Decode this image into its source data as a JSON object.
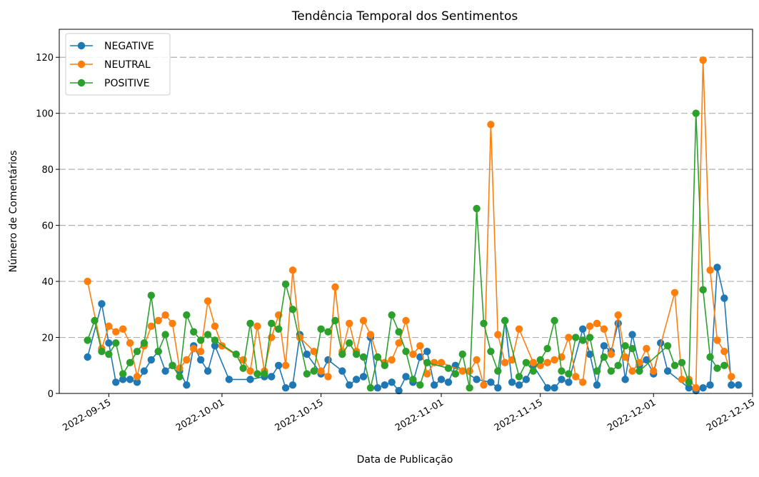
{
  "chart_data": {
    "type": "line",
    "title": "Tendência Temporal dos Sentimentos",
    "xlabel": "Data de Publicação",
    "ylabel": "Número de Comentários",
    "ylim": [
      0,
      130
    ],
    "yticks": [
      0,
      20,
      40,
      60,
      80,
      100,
      120
    ],
    "xlim": [
      "2022-09-08",
      "2022-12-15"
    ],
    "xticks": [
      "2022-09-15",
      "2022-10-01",
      "2022-10-15",
      "2022-11-01",
      "2022-11-15",
      "2022-12-01",
      "2022-12-15"
    ],
    "grid": "horizontal dashed",
    "legend": "top-left",
    "series": [
      {
        "name": "NEGATIVE",
        "color": "#1f77b4",
        "points": [
          [
            "2022-09-12",
            13
          ],
          [
            "2022-09-14",
            32
          ],
          [
            "2022-09-15",
            18
          ],
          [
            "2022-09-16",
            4
          ],
          [
            "2022-09-17",
            5
          ],
          [
            "2022-09-18",
            5
          ],
          [
            "2022-09-19",
            4
          ],
          [
            "2022-09-20",
            8
          ],
          [
            "2022-09-21",
            12
          ],
          [
            "2022-09-22",
            15
          ],
          [
            "2022-09-23",
            8
          ],
          [
            "2022-09-24",
            10
          ],
          [
            "2022-09-25",
            8
          ],
          [
            "2022-09-26",
            3
          ],
          [
            "2022-09-27",
            17
          ],
          [
            "2022-09-28",
            12
          ],
          [
            "2022-09-29",
            8
          ],
          [
            "2022-09-30",
            17
          ],
          [
            "2022-10-02",
            5
          ],
          [
            "2022-10-05",
            5
          ],
          [
            "2022-10-07",
            6
          ],
          [
            "2022-10-08",
            6
          ],
          [
            "2022-10-09",
            10
          ],
          [
            "2022-10-10",
            2
          ],
          [
            "2022-10-11",
            3
          ],
          [
            "2022-10-12",
            21
          ],
          [
            "2022-10-13",
            14
          ],
          [
            "2022-10-15",
            7
          ],
          [
            "2022-10-16",
            12
          ],
          [
            "2022-10-18",
            8
          ],
          [
            "2022-10-19",
            3
          ],
          [
            "2022-10-20",
            5
          ],
          [
            "2022-10-21",
            6
          ],
          [
            "2022-10-22",
            20
          ],
          [
            "2022-10-23",
            2
          ],
          [
            "2022-10-24",
            3
          ],
          [
            "2022-10-25",
            4
          ],
          [
            "2022-10-26",
            1
          ],
          [
            "2022-10-27",
            6
          ],
          [
            "2022-10-28",
            4
          ],
          [
            "2022-10-29",
            13
          ],
          [
            "2022-10-30",
            15
          ],
          [
            "2022-10-31",
            3
          ],
          [
            "2022-11-01",
            5
          ],
          [
            "2022-11-02",
            4
          ],
          [
            "2022-11-03",
            10
          ],
          [
            "2022-11-06",
            5
          ],
          [
            "2022-11-08",
            4
          ],
          [
            "2022-11-09",
            2
          ],
          [
            "2022-11-10",
            26
          ],
          [
            "2022-11-11",
            4
          ],
          [
            "2022-11-12",
            3
          ],
          [
            "2022-11-13",
            5
          ],
          [
            "2022-11-14",
            10
          ],
          [
            "2022-11-16",
            2
          ],
          [
            "2022-11-17",
            2
          ],
          [
            "2022-11-18",
            5
          ],
          [
            "2022-11-19",
            4
          ],
          [
            "2022-11-21",
            23
          ],
          [
            "2022-11-22",
            14
          ],
          [
            "2022-11-23",
            3
          ],
          [
            "2022-11-24",
            17
          ],
          [
            "2022-11-25",
            15
          ],
          [
            "2022-11-26",
            25
          ],
          [
            "2022-11-27",
            5
          ],
          [
            "2022-11-28",
            21
          ],
          [
            "2022-11-29",
            10
          ],
          [
            "2022-11-30",
            12
          ],
          [
            "2022-12-01",
            7
          ],
          [
            "2022-12-02",
            18
          ],
          [
            "2022-12-03",
            8
          ],
          [
            "2022-12-06",
            2
          ],
          [
            "2022-12-07",
            1
          ],
          [
            "2022-12-08",
            2
          ],
          [
            "2022-12-09",
            3
          ],
          [
            "2022-12-10",
            45
          ],
          [
            "2022-12-11",
            34
          ],
          [
            "2022-12-12",
            3
          ],
          [
            "2022-12-13",
            3
          ]
        ]
      },
      {
        "name": "NEUTRAL",
        "color": "#ff7f0e",
        "points": [
          [
            "2022-09-12",
            40
          ],
          [
            "2022-09-14",
            16
          ],
          [
            "2022-09-15",
            24
          ],
          [
            "2022-09-16",
            22
          ],
          [
            "2022-09-17",
            23
          ],
          [
            "2022-09-18",
            18
          ],
          [
            "2022-09-19",
            6
          ],
          [
            "2022-09-20",
            17
          ],
          [
            "2022-09-21",
            24
          ],
          [
            "2022-09-22",
            26
          ],
          [
            "2022-09-23",
            28
          ],
          [
            "2022-09-24",
            25
          ],
          [
            "2022-09-25",
            9
          ],
          [
            "2022-09-26",
            12
          ],
          [
            "2022-09-27",
            16
          ],
          [
            "2022-09-28",
            15
          ],
          [
            "2022-09-29",
            33
          ],
          [
            "2022-09-30",
            24
          ],
          [
            "2022-10-01",
            17
          ],
          [
            "2022-10-04",
            12
          ],
          [
            "2022-10-05",
            8
          ],
          [
            "2022-10-06",
            24
          ],
          [
            "2022-10-07",
            8
          ],
          [
            "2022-10-08",
            20
          ],
          [
            "2022-10-09",
            28
          ],
          [
            "2022-10-10",
            10
          ],
          [
            "2022-10-11",
            44
          ],
          [
            "2022-10-12",
            20
          ],
          [
            "2022-10-14",
            15
          ],
          [
            "2022-10-15",
            8
          ],
          [
            "2022-10-16",
            6
          ],
          [
            "2022-10-17",
            38
          ],
          [
            "2022-10-18",
            15
          ],
          [
            "2022-10-19",
            25
          ],
          [
            "2022-10-20",
            15
          ],
          [
            "2022-10-21",
            26
          ],
          [
            "2022-10-22",
            21
          ],
          [
            "2022-10-23",
            13
          ],
          [
            "2022-10-24",
            11
          ],
          [
            "2022-10-25",
            12
          ],
          [
            "2022-10-26",
            18
          ],
          [
            "2022-10-27",
            26
          ],
          [
            "2022-10-28",
            14
          ],
          [
            "2022-10-29",
            17
          ],
          [
            "2022-10-30",
            7
          ],
          [
            "2022-10-31",
            11
          ],
          [
            "2022-11-01",
            11
          ],
          [
            "2022-11-04",
            8
          ],
          [
            "2022-11-05",
            8
          ],
          [
            "2022-11-06",
            12
          ],
          [
            "2022-11-07",
            3
          ],
          [
            "2022-11-08",
            96
          ],
          [
            "2022-11-09",
            21
          ],
          [
            "2022-11-10",
            11
          ],
          [
            "2022-11-11",
            12
          ],
          [
            "2022-11-12",
            23
          ],
          [
            "2022-11-14",
            11
          ],
          [
            "2022-11-15",
            10
          ],
          [
            "2022-11-16",
            11
          ],
          [
            "2022-11-17",
            12
          ],
          [
            "2022-11-18",
            13
          ],
          [
            "2022-11-19",
            20
          ],
          [
            "2022-11-20",
            6
          ],
          [
            "2022-11-21",
            4
          ],
          [
            "2022-11-22",
            24
          ],
          [
            "2022-11-23",
            25
          ],
          [
            "2022-11-24",
            23
          ],
          [
            "2022-11-25",
            14
          ],
          [
            "2022-11-26",
            28
          ],
          [
            "2022-11-27",
            13
          ],
          [
            "2022-11-28",
            8
          ],
          [
            "2022-11-29",
            11
          ],
          [
            "2022-11-30",
            16
          ],
          [
            "2022-12-01",
            8
          ],
          [
            "2022-12-04",
            36
          ],
          [
            "2022-12-05",
            5
          ],
          [
            "2022-12-06",
            5
          ],
          [
            "2022-12-07",
            2
          ],
          [
            "2022-12-08",
            119
          ],
          [
            "2022-12-09",
            44
          ],
          [
            "2022-12-10",
            19
          ],
          [
            "2022-12-11",
            15
          ],
          [
            "2022-12-12",
            6
          ]
        ]
      },
      {
        "name": "POSITIVE",
        "color": "#2ca02c",
        "points": [
          [
            "2022-09-12",
            19
          ],
          [
            "2022-09-13",
            26
          ],
          [
            "2022-09-14",
            15
          ],
          [
            "2022-09-15",
            14
          ],
          [
            "2022-09-16",
            18
          ],
          [
            "2022-09-17",
            7
          ],
          [
            "2022-09-18",
            11
          ],
          [
            "2022-09-19",
            15
          ],
          [
            "2022-09-20",
            18
          ],
          [
            "2022-09-21",
            35
          ],
          [
            "2022-09-22",
            15
          ],
          [
            "2022-09-23",
            21
          ],
          [
            "2022-09-24",
            10
          ],
          [
            "2022-09-25",
            6
          ],
          [
            "2022-09-26",
            28
          ],
          [
            "2022-09-27",
            22
          ],
          [
            "2022-09-28",
            19
          ],
          [
            "2022-09-29",
            21
          ],
          [
            "2022-09-30",
            19
          ],
          [
            "2022-10-03",
            14
          ],
          [
            "2022-10-04",
            9
          ],
          [
            "2022-10-05",
            25
          ],
          [
            "2022-10-06",
            7
          ],
          [
            "2022-10-07",
            7
          ],
          [
            "2022-10-08",
            25
          ],
          [
            "2022-10-09",
            23
          ],
          [
            "2022-10-10",
            39
          ],
          [
            "2022-10-11",
            30
          ],
          [
            "2022-10-13",
            7
          ],
          [
            "2022-10-14",
            8
          ],
          [
            "2022-10-15",
            23
          ],
          [
            "2022-10-16",
            22
          ],
          [
            "2022-10-17",
            26
          ],
          [
            "2022-10-18",
            14
          ],
          [
            "2022-10-19",
            18
          ],
          [
            "2022-10-20",
            14
          ],
          [
            "2022-10-21",
            13
          ],
          [
            "2022-10-22",
            2
          ],
          [
            "2022-10-23",
            13
          ],
          [
            "2022-10-24",
            10
          ],
          [
            "2022-10-25",
            28
          ],
          [
            "2022-10-26",
            22
          ],
          [
            "2022-10-27",
            15
          ],
          [
            "2022-10-28",
            5
          ],
          [
            "2022-10-29",
            3
          ],
          [
            "2022-10-30",
            11
          ],
          [
            "2022-11-02",
            9
          ],
          [
            "2022-11-03",
            7
          ],
          [
            "2022-11-04",
            14
          ],
          [
            "2022-11-05",
            2
          ],
          [
            "2022-11-06",
            66
          ],
          [
            "2022-11-07",
            25
          ],
          [
            "2022-11-08",
            15
          ],
          [
            "2022-11-09",
            8
          ],
          [
            "2022-11-10",
            26
          ],
          [
            "2022-11-12",
            6
          ],
          [
            "2022-11-13",
            11
          ],
          [
            "2022-11-14",
            8
          ],
          [
            "2022-11-15",
            12
          ],
          [
            "2022-11-16",
            16
          ],
          [
            "2022-11-17",
            26
          ],
          [
            "2022-11-18",
            8
          ],
          [
            "2022-11-19",
            7
          ],
          [
            "2022-11-20",
            20
          ],
          [
            "2022-11-21",
            19
          ],
          [
            "2022-11-22",
            20
          ],
          [
            "2022-11-23",
            8
          ],
          [
            "2022-11-24",
            13
          ],
          [
            "2022-11-25",
            8
          ],
          [
            "2022-11-26",
            10
          ],
          [
            "2022-11-27",
            17
          ],
          [
            "2022-11-28",
            16
          ],
          [
            "2022-11-29",
            8
          ],
          [
            "2022-12-03",
            17
          ],
          [
            "2022-12-04",
            10
          ],
          [
            "2022-12-05",
            11
          ],
          [
            "2022-12-06",
            4
          ],
          [
            "2022-12-07",
            100
          ],
          [
            "2022-12-08",
            37
          ],
          [
            "2022-12-09",
            13
          ],
          [
            "2022-12-10",
            9
          ],
          [
            "2022-12-11",
            10
          ]
        ]
      }
    ]
  }
}
